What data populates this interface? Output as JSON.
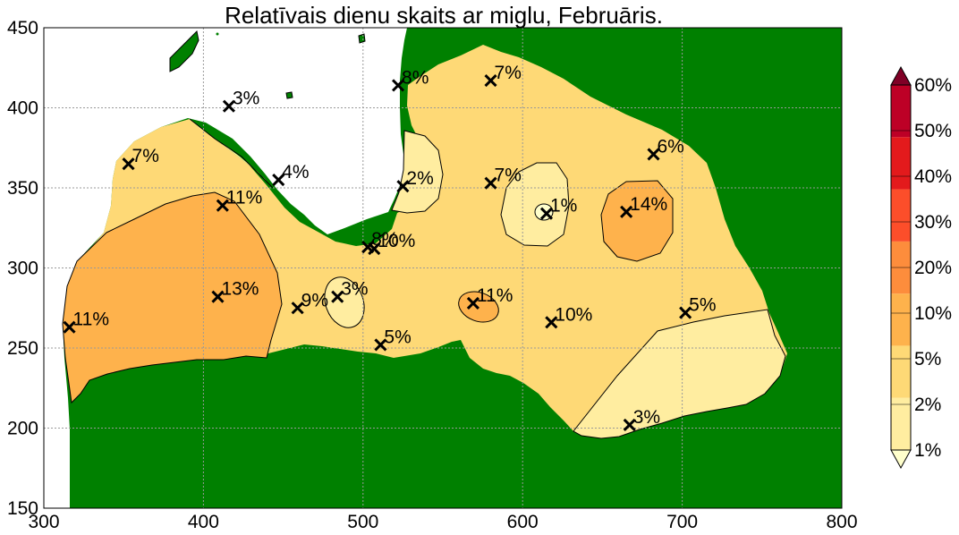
{
  "title": "Relatīvais dienu skaits ar miglu, Februāris.",
  "colors": {
    "land": "#008000",
    "sea": "#ffffff",
    "grid": "#999999",
    "marker": "#000000",
    "level_colors": [
      "#ffffcc",
      "#ffeda0",
      "#fed976",
      "#feb24c",
      "#fd8d3c",
      "#fc4e2a",
      "#e31a1c",
      "#bd0026",
      "#800026"
    ]
  },
  "chart_data": {
    "type": "contour-map",
    "xlim": [
      300,
      800
    ],
    "ylim": [
      150,
      450
    ],
    "x_ticks": [
      "300",
      "400",
      "500",
      "600",
      "700",
      "800"
    ],
    "y_ticks": [
      "150",
      "200",
      "250",
      "300",
      "350",
      "400",
      "450"
    ],
    "grid": true,
    "colorbar": {
      "levels": [
        "1%",
        "2%",
        "5%",
        "10%",
        "20%",
        "30%",
        "40%",
        "50%",
        "60%"
      ],
      "extend": "both"
    },
    "stations": [
      {
        "x": 316,
        "y": 263,
        "label": "11%"
      },
      {
        "x": 353,
        "y": 365,
        "label": "7%"
      },
      {
        "x": 409,
        "y": 282,
        "label": "13%"
      },
      {
        "x": 412,
        "y": 339,
        "label": "11%"
      },
      {
        "x": 416,
        "y": 401,
        "label": "3%"
      },
      {
        "x": 447,
        "y": 355,
        "label": "4%"
      },
      {
        "x": 459,
        "y": 275,
        "label": "9%"
      },
      {
        "x": 484,
        "y": 282,
        "label": "3%"
      },
      {
        "x": 503,
        "y": 313,
        "label": "8%"
      },
      {
        "x": 507,
        "y": 312,
        "label": "10%"
      },
      {
        "x": 511,
        "y": 252,
        "label": "5%"
      },
      {
        "x": 522,
        "y": 414,
        "label": "8%"
      },
      {
        "x": 525,
        "y": 351,
        "label": "2%"
      },
      {
        "x": 569,
        "y": 278,
        "label": "11%"
      },
      {
        "x": 580,
        "y": 417,
        "label": "7%"
      },
      {
        "x": 580,
        "y": 353,
        "label": "7%"
      },
      {
        "x": 615,
        "y": 334,
        "label": "1%"
      },
      {
        "x": 618,
        "y": 266,
        "label": "10%"
      },
      {
        "x": 665,
        "y": 335,
        "label": "14%"
      },
      {
        "x": 667,
        "y": 202,
        "label": "3%"
      },
      {
        "x": 682,
        "y": 371,
        "label": "6%"
      },
      {
        "x": 702,
        "y": 272,
        "label": "5%"
      }
    ]
  }
}
